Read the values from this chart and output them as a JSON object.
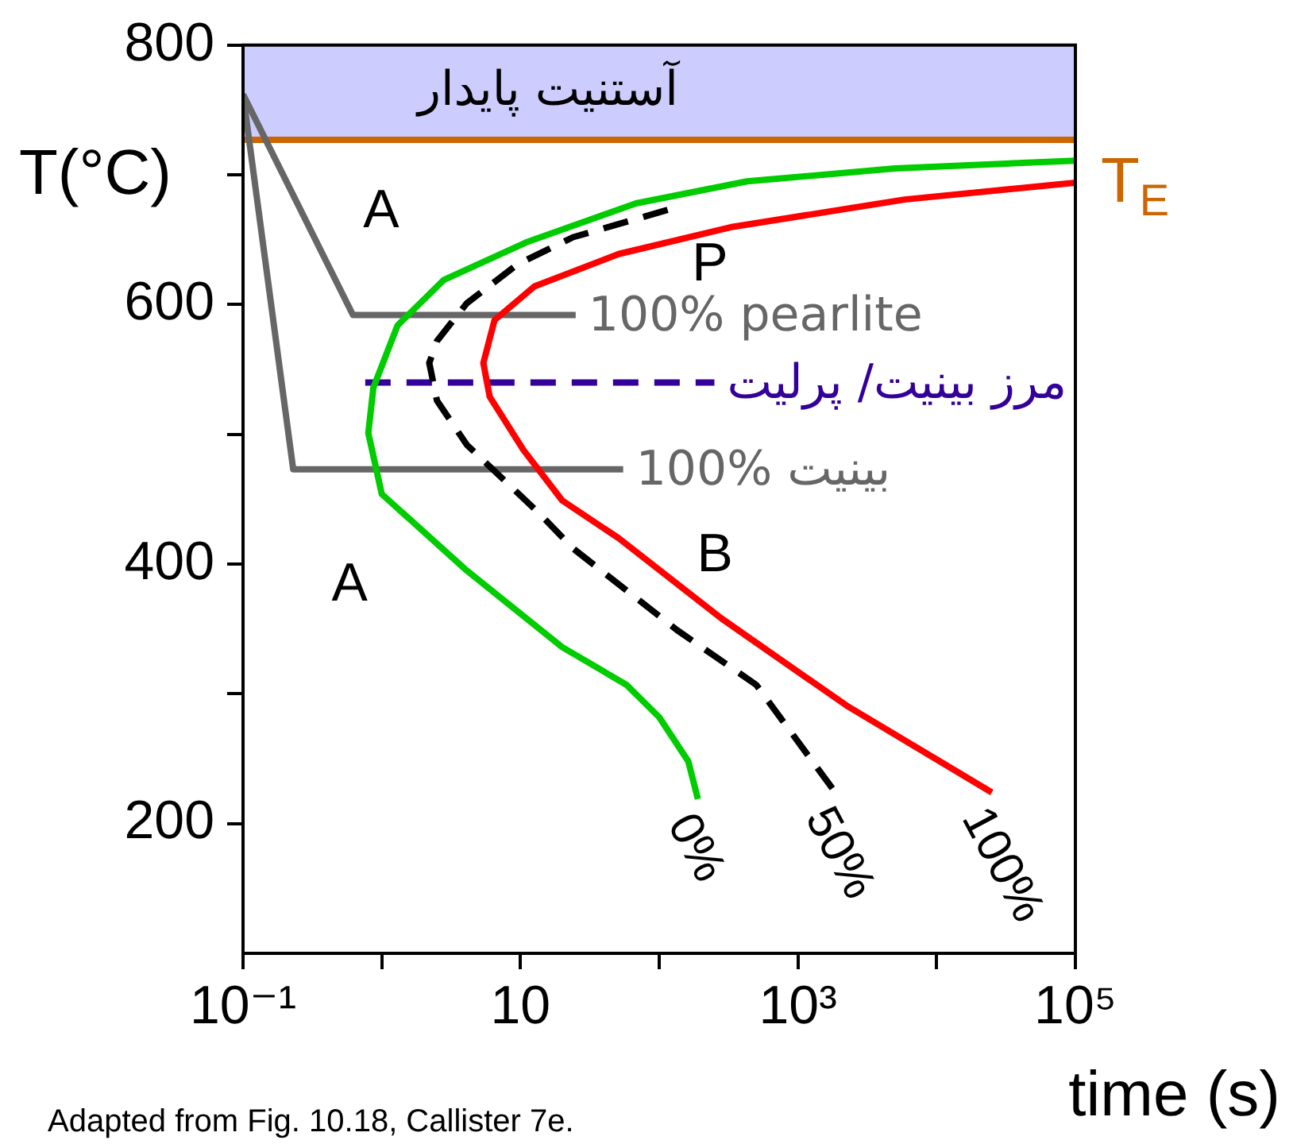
{
  "chart_data": {
    "type": "line",
    "ylabel": "T(°C)",
    "xlabel": "time (s)",
    "log": "x",
    "marker": "none",
    "legend": false,
    "grid": false,
    "xlim": [
      0.1,
      100000
    ],
    "xticks": [
      {
        "value": 0.1,
        "label": "10⁻¹"
      },
      {
        "value": 1,
        "label": null
      },
      10,
      {
        "value": 100,
        "label": null
      },
      {
        "value": 1000,
        "label": "10³"
      },
      {
        "value": 10000,
        "label": null
      },
      {
        "value": 100000,
        "label": "10⁵"
      }
    ],
    "ylim": [
      100,
      800
    ],
    "yticks": [
      200,
      {
        "value": 300,
        "label": null
      },
      400,
      {
        "value": 500,
        "label": null
      },
      600,
      {
        "value": 700,
        "label": null
      },
      800
    ],
    "bands": [
      {
        "axis": "y",
        "from": 727,
        "to": 800,
        "label": "آستنیت پایدار",
        "color": "#ccccff"
      }
    ],
    "ref_lines": [
      {
        "axis": "y",
        "value": 727,
        "label": "T$_{E}$",
        "color": "#cc6600"
      }
    ],
    "annotations": [
      "A",
      "A",
      "P",
      "B",
      "Adapted from Fig. 10.18, Callister 7e."
    ],
    "series": [
      {
        "name": "0%",
        "color": "#00cc00",
        "x": [
          100000,
          5000,
          430,
          68,
          11,
          2.8,
          1.3,
          0.87,
          0.8,
          1,
          4.1,
          20,
          58,
          100,
          162,
          190
        ],
        "values": [
          711,
          705,
          695,
          678,
          648,
          619,
          584,
          536,
          501,
          454,
          395,
          336,
          307,
          282,
          248,
          219
        ]
      },
      {
        "name": "50%",
        "color": "#000000",
        "line_style": "dashed",
        "x": [
          115,
          24,
          9.5,
          4.1,
          2.5,
          2.2,
          2.5,
          4.1,
          14,
          24,
          135,
          500,
          1860
        ],
        "values": [
          673,
          652,
          631,
          601,
          572,
          555,
          526,
          492,
          438,
          412,
          349,
          307,
          224
        ]
      },
      {
        "name": "100%",
        "color": "#ff0000",
        "x": [
          100000,
          5900,
          340,
          51,
          12.6,
          6.5,
          5.4,
          6,
          10.5,
          20,
          51,
          282,
          2240,
          25000
        ],
        "values": [
          694,
          681,
          660,
          639,
          614,
          588,
          555,
          529,
          488,
          449,
          420,
          358,
          291,
          224
        ]
      },
      {
        "name": "100% pearlite",
        "color": "#666666",
        "x": [
          0.1,
          0.62,
          25
        ],
        "values": [
          762,
          592,
          592
        ]
      },
      {
        "name": "100% بینیت",
        "color": "#666666",
        "x": [
          0.1,
          0.23,
          55
        ],
        "values": [
          762,
          473,
          473
        ]
      },
      {
        "name": "مرز بینیت/ پرلیت",
        "color": "#330099",
        "line_style": "dashed",
        "x": [
          0.76,
          250
        ],
        "values": [
          540,
          540
        ]
      }
    ]
  }
}
